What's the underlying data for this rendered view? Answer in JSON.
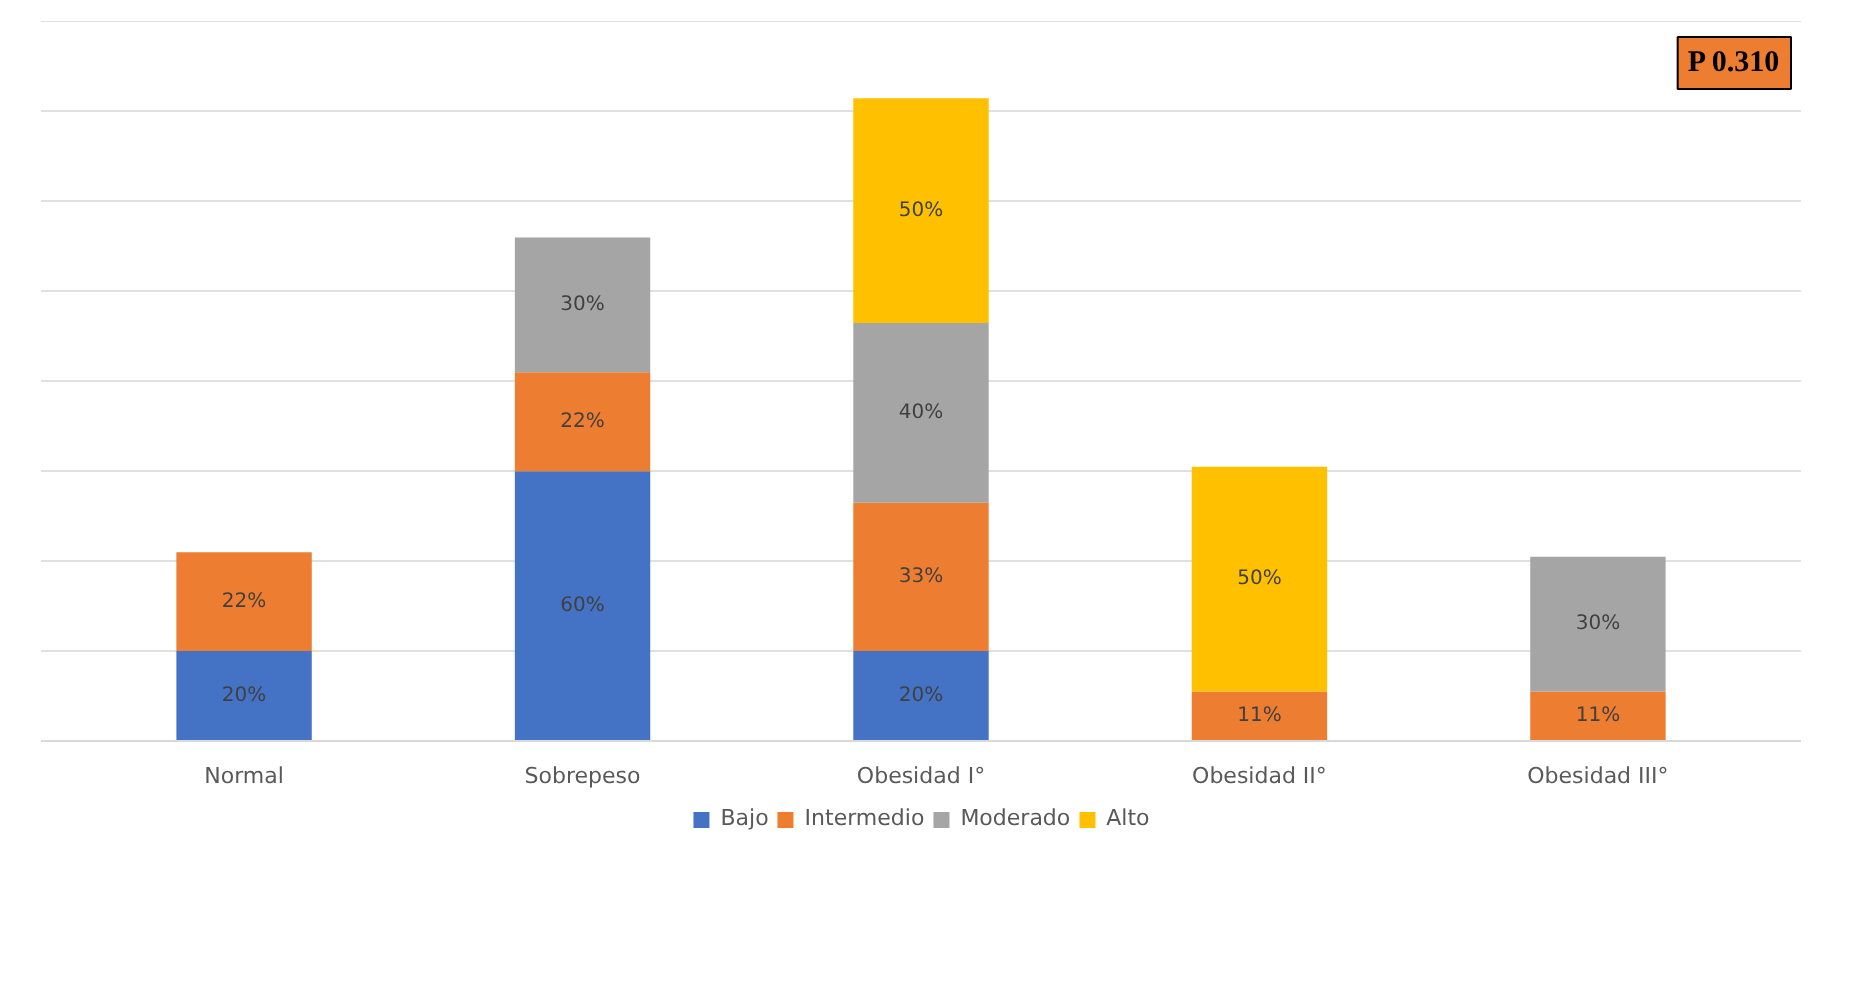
{
  "chart_data": {
    "type": "bar",
    "stacked": true,
    "categories": [
      "Normal",
      "Sobrepeso",
      "Obesidad I°",
      "Obesidad II°",
      "Obesidad III°"
    ],
    "series": [
      {
        "name": "Bajo",
        "color": "#4472c4",
        "values": [
          20,
          60,
          20,
          null,
          null
        ],
        "value_labels": [
          "20%",
          "60%",
          "20%",
          null,
          null
        ]
      },
      {
        "name": "Intermedio",
        "color": "#ed7d31",
        "values": [
          22,
          22,
          33,
          11,
          11
        ],
        "value_labels": [
          "22%",
          "22%",
          "33%",
          "11%",
          "11%"
        ]
      },
      {
        "name": "Moderado",
        "color": "#a5a5a5",
        "values": [
          null,
          30,
          40,
          null,
          30
        ],
        "value_labels": [
          null,
          "30%",
          "40%",
          null,
          "30%"
        ]
      },
      {
        "name": "Alto",
        "color": "#ffc000",
        "values": [
          null,
          null,
          50,
          50,
          null
        ],
        "value_labels": [
          null,
          null,
          "50%",
          "50%",
          null
        ]
      }
    ],
    "tick_labels": "x",
    "grid": "y",
    "legend": "bottom",
    "annotations": [
      "P 0.310"
    ]
  }
}
